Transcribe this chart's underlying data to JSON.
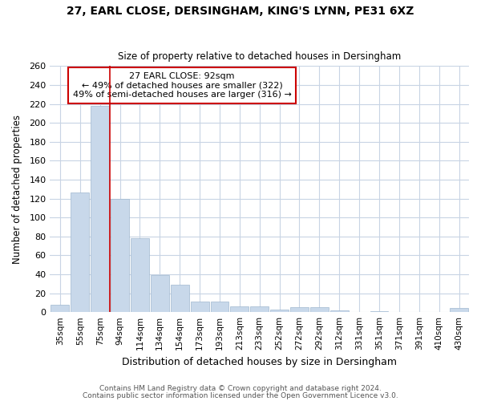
{
  "title_line1": "27, EARL CLOSE, DERSINGHAM, KING'S LYNN, PE31 6XZ",
  "title_line2": "Size of property relative to detached houses in Dersingham",
  "xlabel": "Distribution of detached houses by size in Dersingham",
  "ylabel": "Number of detached properties",
  "footer_line1": "Contains HM Land Registry data © Crown copyright and database right 2024.",
  "footer_line2": "Contains public sector information licensed under the Open Government Licence v3.0.",
  "categories": [
    "35sqm",
    "55sqm",
    "75sqm",
    "94sqm",
    "114sqm",
    "134sqm",
    "154sqm",
    "173sqm",
    "193sqm",
    "213sqm",
    "233sqm",
    "252sqm",
    "272sqm",
    "292sqm",
    "312sqm",
    "331sqm",
    "351sqm",
    "371sqm",
    "391sqm",
    "410sqm",
    "430sqm"
  ],
  "values": [
    8,
    126,
    218,
    120,
    78,
    39,
    29,
    11,
    11,
    6,
    6,
    3,
    5,
    5,
    2,
    0,
    1,
    0,
    0,
    0,
    4
  ],
  "bar_color": "#c8d8ea",
  "bar_edge_color": "#a0b8d0",
  "grid_color": "#c8d4e4",
  "background_color": "#ffffff",
  "plot_bg_color": "#ffffff",
  "vline_x": 2.5,
  "vline_color": "#cc0000",
  "annotation_text_line1": "27 EARL CLOSE: 92sqm",
  "annotation_text_line2": "← 49% of detached houses are smaller (322)",
  "annotation_text_line3": "49% of semi-detached houses are larger (316) →",
  "annotation_box_color": "#cc0000",
  "ylim": [
    0,
    260
  ],
  "yticks": [
    0,
    20,
    40,
    60,
    80,
    100,
    120,
    140,
    160,
    180,
    200,
    220,
    240,
    260
  ]
}
